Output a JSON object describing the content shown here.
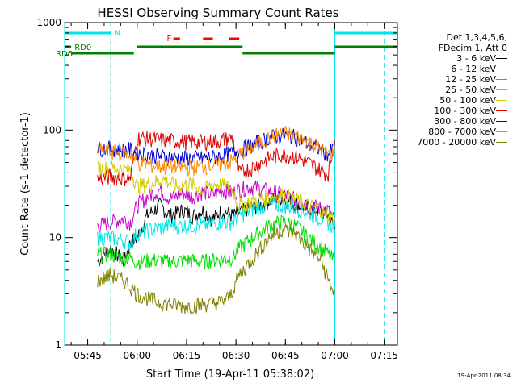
{
  "chart_data": {
    "type": "line",
    "title": "HESSI Observing Summary Count Rates",
    "xlabel": "Start Time (19-Apr-11 05:38:02)",
    "ylabel": "Count Rate (s-1 detector-1)",
    "y_scale": "log",
    "ylim": [
      1,
      1000
    ],
    "xlim": [
      "05:38",
      "07:19"
    ],
    "x_ticks": [
      "05:45",
      "06:00",
      "06:15",
      "06:30",
      "06:45",
      "07:00",
      "07:15"
    ],
    "y_ticks": [
      "1",
      "10",
      "100",
      "1000"
    ],
    "grid": false,
    "legend_position": "right",
    "legend_header": [
      "Det 1,3,4,5,6,",
      "FDecim 1, Att 0"
    ],
    "series": [
      {
        "name": "3 - 6 keV",
        "color": "#000000",
        "points": [
          [
            "05:48",
            6
          ],
          [
            "05:52",
            8
          ],
          [
            "05:56",
            6
          ],
          [
            "05:58",
            9
          ],
          [
            "06:00",
            10
          ],
          [
            "06:03",
            16
          ],
          [
            "06:07",
            20
          ],
          [
            "06:10",
            16
          ],
          [
            "06:14",
            18
          ],
          [
            "06:17",
            16
          ],
          [
            "06:20",
            18
          ],
          [
            "06:23",
            15
          ],
          [
            "06:26",
            18
          ],
          [
            "06:29",
            16
          ],
          [
            "06:31",
            17
          ],
          [
            "06:34",
            19
          ],
          [
            "06:37",
            20
          ],
          [
            "06:40",
            22
          ],
          [
            "06:43",
            24
          ],
          [
            "06:46",
            22
          ],
          [
            "06:49",
            20
          ],
          [
            "06:52",
            19
          ],
          [
            "06:55",
            18
          ],
          [
            "06:58",
            16
          ],
          [
            "07:00",
            12
          ]
        ]
      },
      {
        "name": "6 - 12 keV",
        "color": "#cc00cc",
        "points": [
          [
            "05:48",
            13
          ],
          [
            "05:52",
            14
          ],
          [
            "05:56",
            15
          ],
          [
            "05:58",
            14
          ],
          [
            "06:00",
            20
          ],
          [
            "06:03",
            24
          ],
          [
            "06:07",
            28
          ],
          [
            "06:10",
            23
          ],
          [
            "06:14",
            26
          ],
          [
            "06:17",
            24
          ],
          [
            "06:20",
            27
          ],
          [
            "06:23",
            25
          ],
          [
            "06:26",
            28
          ],
          [
            "06:29",
            26
          ],
          [
            "06:31",
            28
          ],
          [
            "06:34",
            30
          ],
          [
            "06:37",
            29
          ],
          [
            "06:40",
            27
          ],
          [
            "06:43",
            26
          ],
          [
            "06:46",
            24
          ],
          [
            "06:49",
            22
          ],
          [
            "06:52",
            20
          ],
          [
            "06:55",
            19
          ],
          [
            "06:58",
            18
          ],
          [
            "07:00",
            14
          ]
        ]
      },
      {
        "name": "12 - 25 keV",
        "color": "#00dd00",
        "points": [
          [
            "05:48",
            7
          ],
          [
            "05:52",
            7
          ],
          [
            "05:56",
            6.5
          ],
          [
            "05:58",
            6.5
          ],
          [
            "06:00",
            6
          ],
          [
            "06:05",
            6.2
          ],
          [
            "06:10",
            6
          ],
          [
            "06:15",
            6.2
          ],
          [
            "06:20",
            6
          ],
          [
            "06:25",
            6.3
          ],
          [
            "06:29",
            6.5
          ],
          [
            "06:31",
            8
          ],
          [
            "06:35",
            10
          ],
          [
            "06:40",
            13
          ],
          [
            "06:44",
            14
          ],
          [
            "06:48",
            13
          ],
          [
            "06:52",
            10
          ],
          [
            "06:56",
            8
          ],
          [
            "06:58",
            7
          ],
          [
            "07:00",
            6
          ]
        ]
      },
      {
        "name": "25 - 50 keV",
        "color": "#00e5e5",
        "points": [
          [
            "05:48",
            10
          ],
          [
            "05:52",
            10
          ],
          [
            "05:56",
            9.5
          ],
          [
            "05:58",
            9
          ],
          [
            "06:00",
            11
          ],
          [
            "06:05",
            12
          ],
          [
            "06:10",
            13
          ],
          [
            "06:15",
            13
          ],
          [
            "06:20",
            13
          ],
          [
            "06:25",
            14
          ],
          [
            "06:29",
            14
          ],
          [
            "06:31",
            16
          ],
          [
            "06:36",
            19
          ],
          [
            "06:40",
            20
          ],
          [
            "06:44",
            20
          ],
          [
            "06:48",
            19
          ],
          [
            "06:52",
            17
          ],
          [
            "06:56",
            15
          ],
          [
            "06:58",
            14
          ],
          [
            "07:00",
            12
          ]
        ]
      },
      {
        "name": "50 - 100 keV",
        "color": "#cccc00",
        "points": [
          [
            "05:48",
            44
          ],
          [
            "05:52",
            45
          ],
          [
            "05:56",
            43
          ],
          [
            "05:58",
            43
          ],
          [
            "06:00",
            30
          ],
          [
            "06:04",
            32
          ],
          [
            "06:08",
            35
          ],
          [
            "06:12",
            30
          ],
          [
            "06:16",
            32
          ],
          [
            "06:20",
            28
          ],
          [
            "06:24",
            32
          ],
          [
            "06:27",
            30
          ],
          [
            "06:29",
            28
          ],
          [
            "06:31",
            20
          ],
          [
            "06:35",
            22
          ],
          [
            "06:40",
            24
          ],
          [
            "06:44",
            25
          ],
          [
            "06:48",
            23
          ],
          [
            "06:52",
            20
          ],
          [
            "06:56",
            18
          ],
          [
            "06:58",
            16
          ],
          [
            "07:00",
            15
          ]
        ]
      },
      {
        "name": "100 - 300 keV",
        "color": "#dd0000",
        "points": [
          [
            "05:48",
            35
          ],
          [
            "05:52",
            37
          ],
          [
            "05:56",
            36
          ],
          [
            "05:58",
            36
          ],
          [
            "06:00",
            85
          ],
          [
            "06:05",
            83
          ],
          [
            "06:10",
            80
          ],
          [
            "06:15",
            78
          ],
          [
            "06:20",
            78
          ],
          [
            "06:25",
            80
          ],
          [
            "06:29",
            85
          ],
          [
            "06:31",
            40
          ],
          [
            "06:35",
            45
          ],
          [
            "06:40",
            55
          ],
          [
            "06:44",
            60
          ],
          [
            "06:48",
            57
          ],
          [
            "06:52",
            50
          ],
          [
            "06:56",
            42
          ],
          [
            "06:58",
            40
          ],
          [
            "07:00",
            80
          ]
        ]
      },
      {
        "name": "300 - 800 keV",
        "color": "#0000dd",
        "points": [
          [
            "05:48",
            68
          ],
          [
            "05:52",
            68
          ],
          [
            "05:56",
            66
          ],
          [
            "05:58",
            66
          ],
          [
            "06:00",
            62
          ],
          [
            "06:05",
            58
          ],
          [
            "06:10",
            56
          ],
          [
            "06:15",
            55
          ],
          [
            "06:20",
            55
          ],
          [
            "06:25",
            57
          ],
          [
            "06:29",
            62
          ],
          [
            "06:31",
            65
          ],
          [
            "06:36",
            75
          ],
          [
            "06:40",
            85
          ],
          [
            "06:44",
            90
          ],
          [
            "06:48",
            87
          ],
          [
            "06:52",
            75
          ],
          [
            "06:56",
            65
          ],
          [
            "06:58",
            60
          ],
          [
            "07:00",
            70
          ]
        ]
      },
      {
        "name": "800 - 7000 keV",
        "color": "#ff8800",
        "points": [
          [
            "05:48",
            65
          ],
          [
            "05:52",
            63
          ],
          [
            "05:56",
            60
          ],
          [
            "05:58",
            60
          ],
          [
            "06:00",
            50
          ],
          [
            "06:05",
            47
          ],
          [
            "06:10",
            45
          ],
          [
            "06:15",
            45
          ],
          [
            "06:20",
            46
          ],
          [
            "06:25",
            48
          ],
          [
            "06:29",
            52
          ],
          [
            "06:31",
            60
          ],
          [
            "06:36",
            72
          ],
          [
            "06:40",
            85
          ],
          [
            "06:44",
            95
          ],
          [
            "06:48",
            90
          ],
          [
            "06:52",
            78
          ],
          [
            "06:56",
            66
          ],
          [
            "06:58",
            60
          ],
          [
            "07:00",
            65
          ]
        ]
      },
      {
        "name": "7000 - 20000 keV",
        "color": "#808000",
        "points": [
          [
            "05:48",
            4
          ],
          [
            "05:52",
            4.5
          ],
          [
            "05:56",
            4
          ],
          [
            "05:58",
            3.5
          ],
          [
            "06:00",
            3
          ],
          [
            "06:05",
            2.6
          ],
          [
            "06:10",
            2.4
          ],
          [
            "06:15",
            2.3
          ],
          [
            "06:20",
            2.4
          ],
          [
            "06:25",
            2.5
          ],
          [
            "06:28",
            2.8
          ],
          [
            "06:31",
            4.5
          ],
          [
            "06:36",
            7
          ],
          [
            "06:40",
            10
          ],
          [
            "06:44",
            12
          ],
          [
            "06:48",
            11
          ],
          [
            "06:52",
            8
          ],
          [
            "06:56",
            6
          ],
          [
            "06:58",
            4
          ],
          [
            "07:00",
            3
          ]
        ]
      }
    ],
    "annotations": {
      "flags_labels": [
        "N",
        "RD0",
        "RD6",
        "F"
      ],
      "night_bars": [
        [
          "05:38",
          "05:52"
        ],
        [
          "07:00",
          "07:19"
        ]
      ],
      "rd0_bars": [
        [
          "05:38",
          "05:40"
        ],
        [
          "06:00",
          "06:32"
        ],
        [
          "07:00",
          "07:19"
        ]
      ],
      "rd6_bars": [
        [
          "05:40",
          "05:59"
        ],
        [
          "06:32",
          "07:00"
        ]
      ],
      "flare_marks": [
        [
          "06:11",
          "06:13"
        ],
        [
          "06:20",
          "06:23"
        ],
        [
          "06:28",
          "06:31"
        ]
      ],
      "night_lines": [
        "05:38",
        "05:52",
        "07:00",
        "07:15"
      ]
    },
    "timestamp": "19-Apr-2011 08:34"
  },
  "colors": {
    "night": "#00e5e5",
    "rd": "#008000",
    "flare": "#ff0000",
    "axis": "#000000"
  }
}
